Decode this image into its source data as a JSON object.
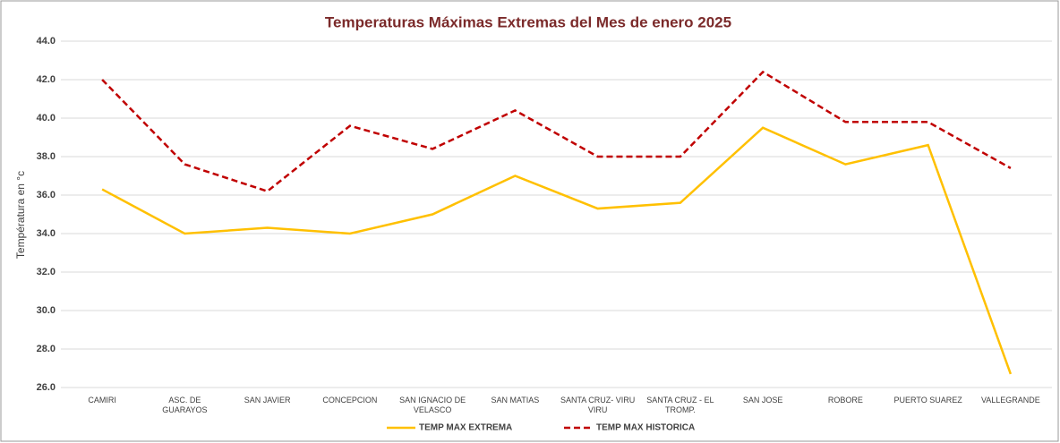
{
  "chart_data": {
    "type": "line",
    "title": "Temperaturas Máximas Extremas del Mes de enero 2025",
    "y_label": "Températura en °c",
    "categories": [
      "CAMIRI",
      "ASC. DE GUARAYOS",
      "SAN JAVIER",
      "CONCEPCION",
      "SAN IGNACIO DE VELASCO",
      "SAN MATIAS",
      "SANTA CRUZ- VIRU VIRU",
      "SANTA CRUZ - EL TROMP.",
      "SAN JOSE",
      "ROBORE",
      "PUERTO SUAREZ",
      "VALLEGRANDE"
    ],
    "series": [
      {
        "name": "TEMP MAX EXTREMA",
        "color": "#ffc000",
        "dash": false,
        "values": [
          36.3,
          34.0,
          34.3,
          34.0,
          35.0,
          37.0,
          35.3,
          35.6,
          39.5,
          37.6,
          38.6,
          26.7
        ]
      },
      {
        "name": "TEMP MAX HISTORICA",
        "color": "#c00000",
        "dash": true,
        "values": [
          42.0,
          37.6,
          36.2,
          39.6,
          38.4,
          40.4,
          38.0,
          38.0,
          42.4,
          39.8,
          39.8,
          37.4
        ]
      }
    ],
    "ylim": [
      26,
      44
    ],
    "yticks": [
      {
        "value": 26,
        "label": "26.0"
      },
      {
        "value": 28,
        "label": "28.0"
      },
      {
        "value": 30,
        "label": "30.0"
      },
      {
        "value": 32,
        "label": "32.0"
      },
      {
        "value": 34,
        "label": "34.0"
      },
      {
        "value": 36,
        "label": "36.0"
      },
      {
        "value": 38,
        "label": "38.0"
      },
      {
        "value": 40,
        "label": "40.0"
      },
      {
        "value": 42,
        "label": "42.0"
      },
      {
        "value": 44,
        "label": "44.0"
      }
    ],
    "grid": true,
    "legend": "bottom"
  }
}
